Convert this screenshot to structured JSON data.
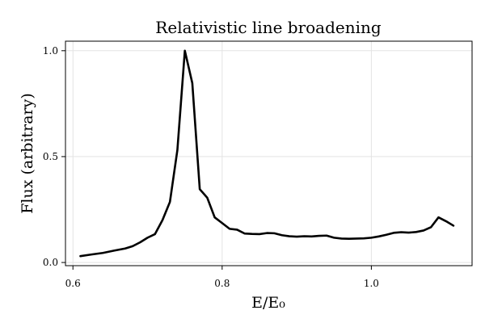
{
  "chart_data": {
    "type": "line",
    "title": "Relativistic line broadening",
    "xlabel": "E/E₀",
    "ylabel": "Flux (arbitrary)",
    "xlim": [
      0.59,
      1.135
    ],
    "ylim": [
      -0.015,
      1.045
    ],
    "xticks": [
      0.6,
      0.8,
      1.0
    ],
    "xtick_labels": [
      "0.6",
      "0.8",
      "1.0"
    ],
    "yticks": [
      0.0,
      0.5,
      1.0
    ],
    "ytick_labels": [
      "0.0",
      "0.5",
      "1.0"
    ],
    "grid": true,
    "series": [
      {
        "color": "#000000",
        "x": [
          0.61,
          0.625,
          0.64,
          0.655,
          0.67,
          0.68,
          0.69,
          0.7,
          0.71,
          0.72,
          0.73,
          0.74,
          0.75,
          0.76,
          0.77,
          0.78,
          0.79,
          0.8,
          0.81,
          0.82,
          0.83,
          0.84,
          0.85,
          0.86,
          0.87,
          0.88,
          0.89,
          0.9,
          0.91,
          0.92,
          0.93,
          0.94,
          0.95,
          0.96,
          0.97,
          0.98,
          0.99,
          1.0,
          1.01,
          1.02,
          1.03,
          1.04,
          1.05,
          1.06,
          1.07,
          1.08,
          1.09,
          1.1,
          1.11
        ],
        "y": [
          0.03,
          0.038,
          0.045,
          0.056,
          0.066,
          0.077,
          0.095,
          0.117,
          0.134,
          0.2,
          0.286,
          0.531,
          1.0,
          0.847,
          0.346,
          0.306,
          0.213,
          0.186,
          0.159,
          0.155,
          0.137,
          0.135,
          0.134,
          0.139,
          0.138,
          0.129,
          0.124,
          0.122,
          0.124,
          0.123,
          0.126,
          0.127,
          0.117,
          0.113,
          0.112,
          0.113,
          0.114,
          0.117,
          0.123,
          0.131,
          0.14,
          0.143,
          0.141,
          0.144,
          0.151,
          0.167,
          0.213,
          0.195,
          0.174
        ]
      }
    ]
  }
}
